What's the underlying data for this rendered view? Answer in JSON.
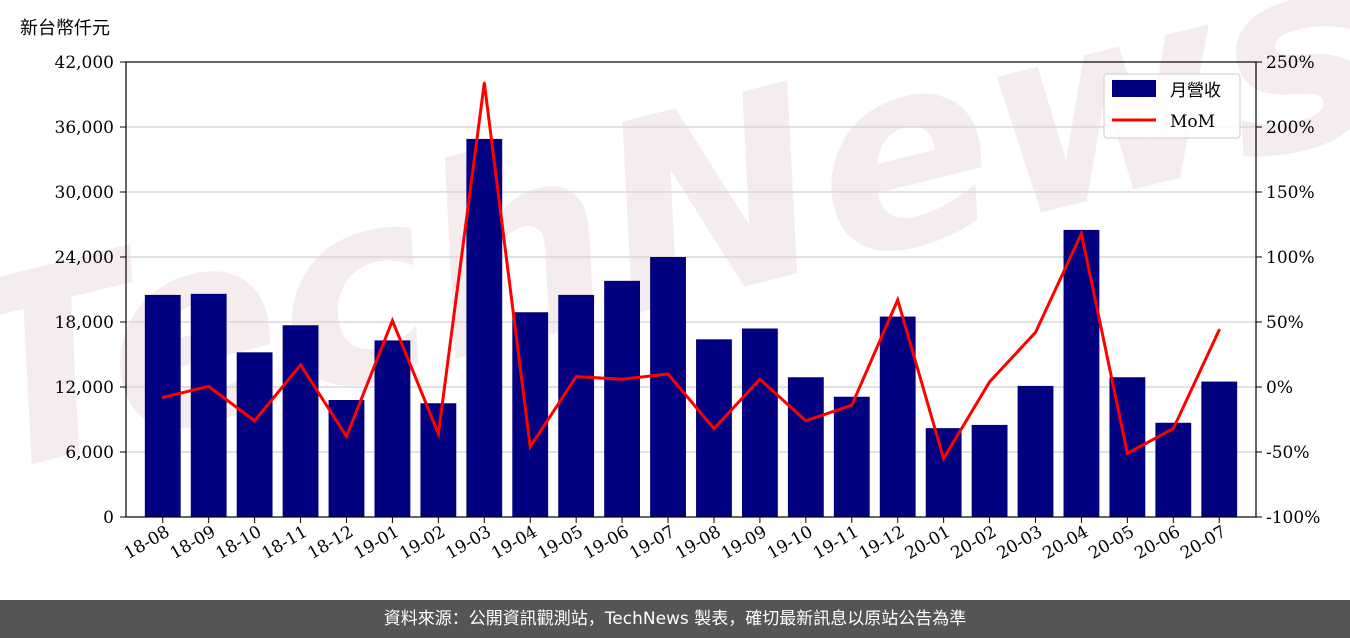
{
  "chart_data": {
    "type": "bar",
    "ylabel_left": "新台幣仟元",
    "categories": [
      "18-08",
      "18-09",
      "18-10",
      "18-11",
      "18-12",
      "19-01",
      "19-02",
      "19-03",
      "19-04",
      "19-05",
      "19-06",
      "19-07",
      "19-08",
      "19-09",
      "19-10",
      "19-11",
      "19-12",
      "20-01",
      "20-02",
      "20-03",
      "20-04",
      "20-05",
      "20-06",
      "20-07"
    ],
    "series": [
      {
        "name": "月營收",
        "type": "bar",
        "axis": "left",
        "color": "#000080",
        "values": [
          20500,
          20600,
          15200,
          17700,
          10800,
          16300,
          10500,
          34900,
          18900,
          20500,
          21800,
          24000,
          16400,
          17400,
          12900,
          11100,
          18500,
          8200,
          8500,
          12100,
          26500,
          12900,
          8700,
          12500
        ]
      },
      {
        "name": "MoM",
        "type": "line",
        "axis": "right",
        "color": "#ff0000",
        "values": [
          -8,
          0.5,
          -26,
          17,
          -38,
          51,
          -36,
          234,
          -46,
          8,
          6,
          10,
          -32,
          6,
          -26,
          -14,
          67,
          -55,
          4,
          42,
          118,
          -51,
          -32,
          44
        ]
      }
    ],
    "y_left": {
      "min": 0,
      "max": 42000,
      "ticks": [
        "0",
        "6,000",
        "12,000",
        "18,000",
        "24,000",
        "30,000",
        "36,000",
        "42,000"
      ]
    },
    "y_right": {
      "min": -100,
      "max": 250,
      "ticks": [
        "-100%",
        "-50%",
        "0%",
        "50%",
        "100%",
        "150%",
        "200%",
        "250%"
      ]
    },
    "grid": true,
    "legend": "top-right",
    "watermark": "TechNews"
  },
  "footer": "資料來源：公開資訊觀測站，TechNews 製表，確切最新訊息以原站公告為準"
}
